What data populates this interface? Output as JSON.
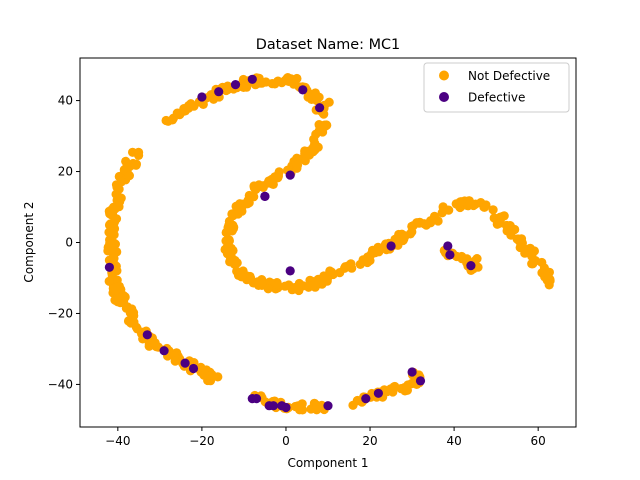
{
  "chart_data": {
    "type": "scatter",
    "title": "Dataset Name: MC1",
    "xlabel": "Component 1",
    "ylabel": "Component 2",
    "xlim": [
      -49,
      69
    ],
    "ylim": [
      -52,
      52
    ],
    "xticks": [
      -40,
      -20,
      0,
      20,
      40,
      60
    ],
    "yticks": [
      -40,
      -20,
      0,
      20,
      40
    ],
    "grid": false,
    "legend": "top-right",
    "series": [
      {
        "name": "Not Defective",
        "color": "#ffa500",
        "arms": [
          [
            [
              -41.5,
              0
            ],
            [
              -41,
              10
            ],
            [
              -38.5,
              19
            ],
            [
              -35.5,
              25
            ]
          ],
          [
            [
              -41.5,
              0
            ],
            [
              -41,
              -12
            ],
            [
              -36.5,
              -22
            ],
            [
              -31,
              -29
            ],
            [
              -26,
              -32
            ],
            [
              -21,
              -36
            ],
            [
              -16,
              -39
            ]
          ],
          [
            [
              -8,
              -43
            ],
            [
              0,
              -46.5
            ],
            [
              10,
              -46
            ]
          ],
          [
            [
              16,
              -45
            ],
            [
              24,
              -42
            ],
            [
              30,
              -40
            ],
            [
              32,
              -38
            ],
            [
              30,
              -36.5
            ]
          ],
          [
            [
              -28,
              34
            ],
            [
              -23,
              38
            ],
            [
              -15,
              43
            ],
            [
              -6,
              46
            ],
            [
              2,
              45.5
            ],
            [
              6,
              42
            ],
            [
              10,
              38
            ]
          ],
          [
            [
              8,
              38
            ],
            [
              9,
              32
            ],
            [
              6,
              26
            ],
            [
              0,
              20
            ],
            [
              -8,
              14
            ],
            [
              -12,
              8
            ],
            [
              -14,
              3
            ],
            [
              -13,
              -4
            ],
            [
              -11,
              -9
            ],
            [
              -5,
              -12
            ],
            [
              3,
              -13
            ],
            [
              8,
              -11
            ],
            [
              14,
              -7
            ],
            [
              20,
              -4
            ],
            [
              26,
              0
            ],
            [
              30,
              4
            ],
            [
              36,
              7
            ]
          ],
          [
            [
              -15,
              3
            ],
            [
              -12,
              4
            ]
          ],
          [
            [
              36,
              9
            ],
            [
              43,
              11
            ],
            [
              48,
              10
            ],
            [
              52,
              5
            ],
            [
              56,
              0
            ],
            [
              60,
              -6
            ],
            [
              63,
              -12
            ]
          ],
          [
            [
              38,
              -3
            ],
            [
              42,
              -5
            ],
            [
              45,
              -7
            ],
            [
              44,
              -4
            ]
          ]
        ],
        "count": 640
      },
      {
        "name": "Defective",
        "color": "#4b0082",
        "x": [
          -42,
          -33,
          -29,
          -24,
          -22,
          -20,
          -16,
          -12,
          -8,
          -5,
          4,
          8,
          1,
          -5,
          1,
          -8,
          -7,
          -4,
          -3,
          -1,
          0,
          10,
          19,
          22,
          25,
          30,
          32,
          38.5,
          39,
          44
        ],
        "y": [
          -7,
          -26,
          -30.5,
          -34,
          -35.5,
          41,
          42.5,
          44.5,
          46,
          13,
          43,
          38,
          19,
          13,
          -8,
          -44,
          -44,
          -46,
          -46,
          -46,
          -46.5,
          -46,
          -44,
          -42.5,
          -1,
          -36.5,
          -39,
          -1,
          -3.5,
          -6.5
        ]
      }
    ]
  }
}
